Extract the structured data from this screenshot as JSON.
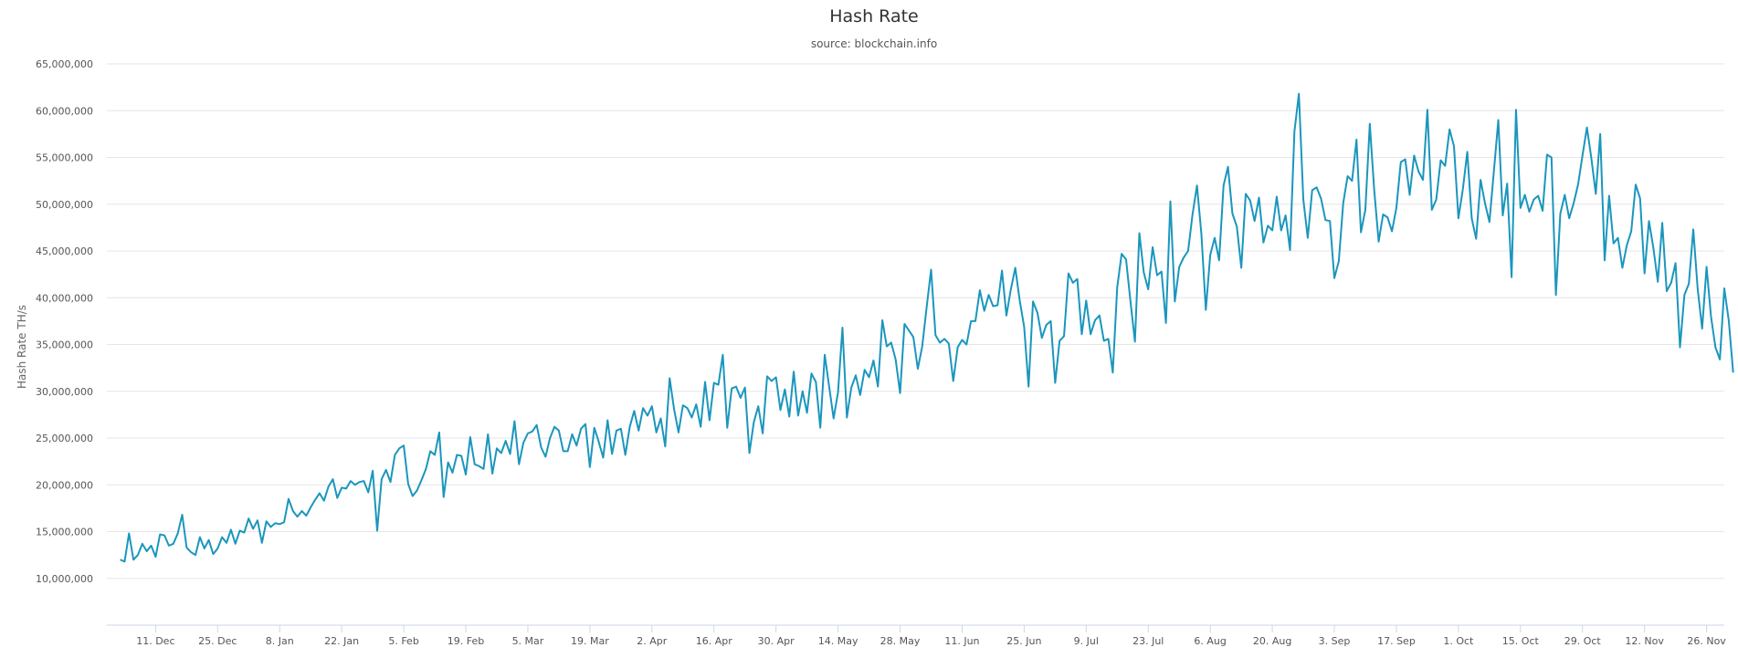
{
  "chart_data": {
    "type": "line",
    "title": "Hash Rate",
    "subtitle": "source: blockchain.info",
    "ylabel": "Hash Rate TH/s",
    "xlabel": "",
    "ylim": [
      5000000,
      65000000
    ],
    "y_ticks": [
      10000000,
      15000000,
      20000000,
      25000000,
      30000000,
      35000000,
      40000000,
      45000000,
      50000000,
      55000000,
      60000000,
      65000000
    ],
    "y_tick_labels": [
      "10,000,000",
      "15,000,000",
      "20,000,000",
      "25,000,000",
      "30,000,000",
      "35,000,000",
      "40,000,000",
      "45,000,000",
      "50,000,000",
      "55,000,000",
      "60,000,000",
      "65,000,000"
    ],
    "x_ticks": [
      8,
      22,
      36,
      50,
      64,
      78,
      92,
      106,
      120,
      134,
      148,
      162,
      176,
      190,
      204,
      218,
      232,
      246,
      260,
      274,
      288,
      302,
      316,
      330,
      344,
      358
    ],
    "x_tick_labels": [
      "11. Dec",
      "25. Dec",
      "8. Jan",
      "22. Jan",
      "5. Feb",
      "19. Feb",
      "5. Mar",
      "19. Mar",
      "2. Apr",
      "16. Apr",
      "30. Apr",
      "14. May",
      "28. May",
      "11. Jun",
      "25. Jun",
      "9. Jul",
      "23. Jul",
      "6. Aug",
      "20. Aug",
      "3. Sep",
      "17. Sep",
      "1. Oct",
      "15. Oct",
      "29. Oct",
      "12. Nov",
      "26. Nov"
    ],
    "xlim": [
      -3,
      362
    ],
    "grid": true,
    "legend": "none",
    "series_color": "#1b96bd",
    "series": [
      {
        "values": [
          12000000,
          11800000,
          14800000,
          12000000,
          12500000,
          13700000,
          12900000,
          13500000,
          12300000,
          14700000,
          14600000,
          13500000,
          13700000,
          14800000,
          16800000,
          13300000,
          12800000,
          12500000,
          14400000,
          13200000,
          14100000,
          12600000,
          13200000,
          14400000,
          13800000,
          15200000,
          13700000,
          15100000,
          14900000,
          16400000,
          15300000,
          16200000,
          13800000,
          16100000,
          15500000,
          15900000,
          15800000,
          16000000,
          18500000,
          17200000,
          16600000,
          17200000,
          16700000,
          17600000,
          18400000,
          19100000,
          18300000,
          19800000,
          20600000,
          18600000,
          19700000,
          19600000,
          20400000,
          20000000,
          20300000,
          20400000,
          19200000,
          21500000,
          15100000,
          20600000,
          21600000,
          20300000,
          23200000,
          23900000,
          24200000,
          20100000,
          18800000,
          19400000,
          20500000,
          21700000,
          23600000,
          23200000,
          25600000,
          18700000,
          22400000,
          21300000,
          23200000,
          23100000,
          21100000,
          25100000,
          22200000,
          22000000,
          21700000,
          25400000,
          21200000,
          23900000,
          23400000,
          24700000,
          23300000,
          26800000,
          22200000,
          24500000,
          25500000,
          25700000,
          26400000,
          24000000,
          23000000,
          25000000,
          26200000,
          25800000,
          23600000,
          23600000,
          25400000,
          24200000,
          26000000,
          26500000,
          21900000,
          26100000,
          24600000,
          22900000,
          26900000,
          23300000,
          25800000,
          26000000,
          23200000,
          26200000,
          27900000,
          25800000,
          28200000,
          27400000,
          28400000,
          25600000,
          27100000,
          24100000,
          31400000,
          28100000,
          25600000,
          28500000,
          28200000,
          27200000,
          28600000,
          26200000,
          31000000,
          26900000,
          30900000,
          30700000,
          33900000,
          26100000,
          30300000,
          30500000,
          29300000,
          30400000,
          23400000,
          26700000,
          28400000,
          25500000,
          31600000,
          31100000,
          31500000,
          28000000,
          30200000,
          27300000,
          32100000,
          27400000,
          30000000,
          27700000,
          31900000,
          31000000,
          26100000,
          33900000,
          30500000,
          27100000,
          29900000,
          36800000,
          27200000,
          30400000,
          31700000,
          29600000,
          32300000,
          31500000,
          33300000,
          30500000,
          37600000,
          34800000,
          35200000,
          33400000,
          29800000,
          37200000,
          36500000,
          35800000,
          32400000,
          34800000,
          39000000,
          43000000,
          36000000,
          35200000,
          35600000,
          35100000,
          31100000,
          34700000,
          35500000,
          35000000,
          37500000,
          37500000,
          40800000,
          38600000,
          40300000,
          39100000,
          39200000,
          42900000,
          38100000,
          40900000,
          43200000,
          39700000,
          36900000,
          30500000,
          39600000,
          38400000,
          35700000,
          37100000,
          37500000,
          30900000,
          35400000,
          35900000,
          42600000,
          41600000,
          42000000,
          36100000,
          39700000,
          36100000,
          37600000,
          38100000,
          35400000,
          35600000,
          32000000,
          41100000,
          44700000,
          44100000,
          39600000,
          35300000,
          46900000,
          42700000,
          40900000,
          45400000,
          42400000,
          42800000,
          37300000,
          50300000,
          39600000,
          43300000,
          44300000,
          45000000,
          48900000,
          52000000,
          46800000,
          38700000,
          44600000,
          46400000,
          44000000,
          52000000,
          54000000,
          49000000,
          47600000,
          43200000,
          51100000,
          50400000,
          48200000,
          50700000,
          45900000,
          47700000,
          47200000,
          50800000,
          47200000,
          48800000,
          45100000,
          57800000,
          61800000,
          50500000,
          46400000,
          51500000,
          51800000,
          50600000,
          48300000,
          48200000,
          42100000,
          43900000,
          50100000,
          53000000,
          52500000,
          56900000,
          47000000,
          49400000,
          58600000,
          51500000,
          46000000,
          48900000,
          48600000,
          47100000,
          49600000,
          54500000,
          54800000,
          51000000,
          55200000,
          53500000,
          52600000,
          60100000,
          49400000,
          50500000,
          54700000,
          54100000,
          58000000,
          56200000,
          48500000,
          51600000,
          55600000,
          48500000,
          46300000,
          52600000,
          50100000,
          48100000,
          53500000,
          59000000,
          48800000,
          52200000,
          42200000,
          60100000,
          49600000,
          51000000,
          49200000,
          50500000,
          50900000,
          49300000,
          55300000,
          55000000,
          40300000,
          49000000,
          51000000,
          48500000,
          50100000,
          52100000,
          55200000,
          58200000,
          54900000,
          51100000,
          57500000,
          44000000,
          50900000,
          45800000,
          46400000,
          43200000,
          45600000,
          47100000,
          52100000,
          50600000,
          42600000,
          48200000,
          45300000,
          41700000,
          48000000,
          40700000,
          41600000,
          43700000,
          34700000,
          40300000,
          41500000,
          47300000,
          40900000,
          36700000,
          43300000,
          38000000,
          34700000,
          33400000,
          41000000,
          37600000,
          32000000
        ]
      }
    ]
  }
}
